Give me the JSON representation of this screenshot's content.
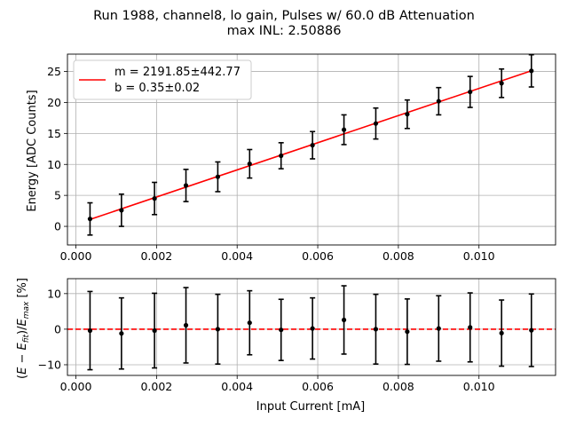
{
  "chart_data": [
    {
      "type": "scatter",
      "title": "Run 1988, channel8, lo gain, Pulses w/ 60.0 dB Attenuation",
      "subtitle": "max INL: 2.50886",
      "xlabel": "",
      "ylabel": "Energy [ADC Counts]",
      "xlim": [
        -0.00021,
        0.0119
      ],
      "ylim": [
        -3.0,
        27.8
      ],
      "grid": true,
      "x_ticks": [
        "0.000",
        "0.002",
        "0.004",
        "0.006",
        "0.008",
        "0.010"
      ],
      "y_ticks": [
        "0",
        "5",
        "10",
        "15",
        "20",
        "25"
      ],
      "legend": {
        "placement": "top-left",
        "line1": "m = 2191.85±442.77",
        "line2": "b = 0.35±0.02",
        "color": "#ff0000"
      },
      "fit_line": {
        "slope": 2191.85,
        "intercept": 0.35,
        "x_range": [
          0.00035,
          0.0113
        ],
        "color": "#ff0000"
      },
      "series": [
        {
          "x": [
            0.00035,
            0.00113,
            0.00195,
            0.00273,
            0.00352,
            0.00431,
            0.00509,
            0.00587,
            0.00665,
            0.00744,
            0.00822,
            0.009,
            0.00978,
            0.01056,
            0.0113
          ],
          "y": [
            1.2,
            2.6,
            4.5,
            6.6,
            8.0,
            10.1,
            11.4,
            13.1,
            15.6,
            16.6,
            18.1,
            20.2,
            21.7,
            23.1,
            25.1
          ],
          "yerr": [
            2.6,
            2.6,
            2.6,
            2.6,
            2.4,
            2.3,
            2.1,
            2.2,
            2.4,
            2.5,
            2.3,
            2.2,
            2.5,
            2.3,
            2.6
          ],
          "color": "#000000"
        }
      ]
    },
    {
      "type": "scatter",
      "title": "",
      "xlabel": "Input Current [mA]",
      "ylabel": "(E − E_fit)/E_max [%]",
      "xlim": [
        -0.00021,
        0.0119
      ],
      "ylim": [
        -13.0,
        14.2
      ],
      "grid": true,
      "x_ticks": [
        "0.000",
        "0.002",
        "0.004",
        "0.006",
        "0.008",
        "0.010"
      ],
      "y_ticks": [
        "−10",
        "0",
        "10"
      ],
      "reference_line": {
        "y": 0,
        "style": "dashed",
        "color": "#ff0000"
      },
      "series": [
        {
          "x": [
            0.00035,
            0.00113,
            0.00195,
            0.00273,
            0.00352,
            0.00431,
            0.00509,
            0.00587,
            0.00665,
            0.00744,
            0.00822,
            0.009,
            0.00978,
            0.01056,
            0.0113
          ],
          "y": [
            -0.4,
            -1.2,
            -0.4,
            1.1,
            0.0,
            1.8,
            -0.2,
            0.2,
            2.6,
            0.0,
            -0.7,
            0.2,
            0.5,
            -1.1,
            -0.3
          ],
          "yerr": [
            11.0,
            10.0,
            10.5,
            10.6,
            9.8,
            9.0,
            8.6,
            8.6,
            9.6,
            9.8,
            9.2,
            9.2,
            9.7,
            9.3,
            10.2
          ],
          "color": "#000000"
        }
      ]
    }
  ]
}
